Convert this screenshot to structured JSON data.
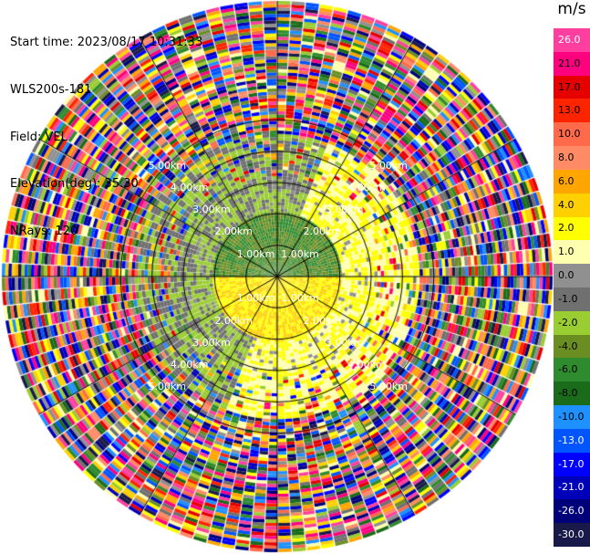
{
  "header": {
    "start_time": "Start time: 2023/08/17 10:31:33",
    "instrument": "WLS200s-181",
    "field": "Field: VEL",
    "elevation": "Elevation(deg): 35.30",
    "nrays": "NRays: 120"
  },
  "chart_data": {
    "type": "heatmap",
    "projection": "polar PPI (plan position indicator)",
    "field": "VEL",
    "units": "m/s",
    "n_rays": 120,
    "elevation_deg": 35.3,
    "range_ring_labels": [
      "1.00km",
      "2.00km",
      "3.00km",
      "4.00km",
      "5.00km"
    ],
    "range_rings_km": [
      1,
      2,
      3,
      4,
      5
    ],
    "max_range_km": 5.1,
    "grid": true,
    "colorbar": {
      "title": "m/s",
      "placement": "right",
      "ticks": [
        "26.0",
        "21.0",
        "17.0",
        "13.0",
        "10.0",
        "8.0",
        "6.0",
        "4.0",
        "2.0",
        "1.0",
        "0.0",
        "-1.0",
        "-2.0",
        "-4.0",
        "-6.0",
        "-8.0",
        "-10.0",
        "-13.0",
        "-17.0",
        "-21.0",
        "-26.0",
        "-30.0"
      ],
      "colors": [
        "#ff3fa0",
        "#ff007f",
        "#e60000",
        "#ff2400",
        "#ff6a4a",
        "#ff8a66",
        "#ffa500",
        "#ffd000",
        "#ffff00",
        "#ffffb0",
        "#909090",
        "#707070",
        "#9acd32",
        "#6b8e23",
        "#2e8b2e",
        "#1a6b1a",
        "#1e90ff",
        "#0055ff",
        "#0000ff",
        "#0000bb",
        "#00007a",
        "#1a1a4a"
      ]
    },
    "regions": [
      {
        "description": "near-range north sector",
        "range_km": [
          0,
          1.2
        ],
        "azimuth_deg": [
          270,
          90
        ],
        "dominant_velocity_ms": -5.0
      },
      {
        "description": "near-range south sector",
        "range_km": [
          0,
          1.2
        ],
        "azimuth_deg": [
          90,
          270
        ],
        "dominant_velocity_ms": 3.0
      },
      {
        "description": "mid-range east/south arc",
        "range_km": [
          1.2,
          2.6
        ],
        "azimuth_deg": [
          20,
          200
        ],
        "dominant_velocity_ms": 1.5
      },
      {
        "description": "mid-range west/north arc",
        "range_km": [
          1.2,
          2.6
        ],
        "azimuth_deg": [
          200,
          380
        ],
        "dominant_velocity_ms": -1.5
      },
      {
        "description": "far range noise",
        "range_km": [
          2.6,
          5.1
        ],
        "azimuth_deg": [
          0,
          360
        ],
        "dominant_velocity_ms": null
      }
    ]
  }
}
